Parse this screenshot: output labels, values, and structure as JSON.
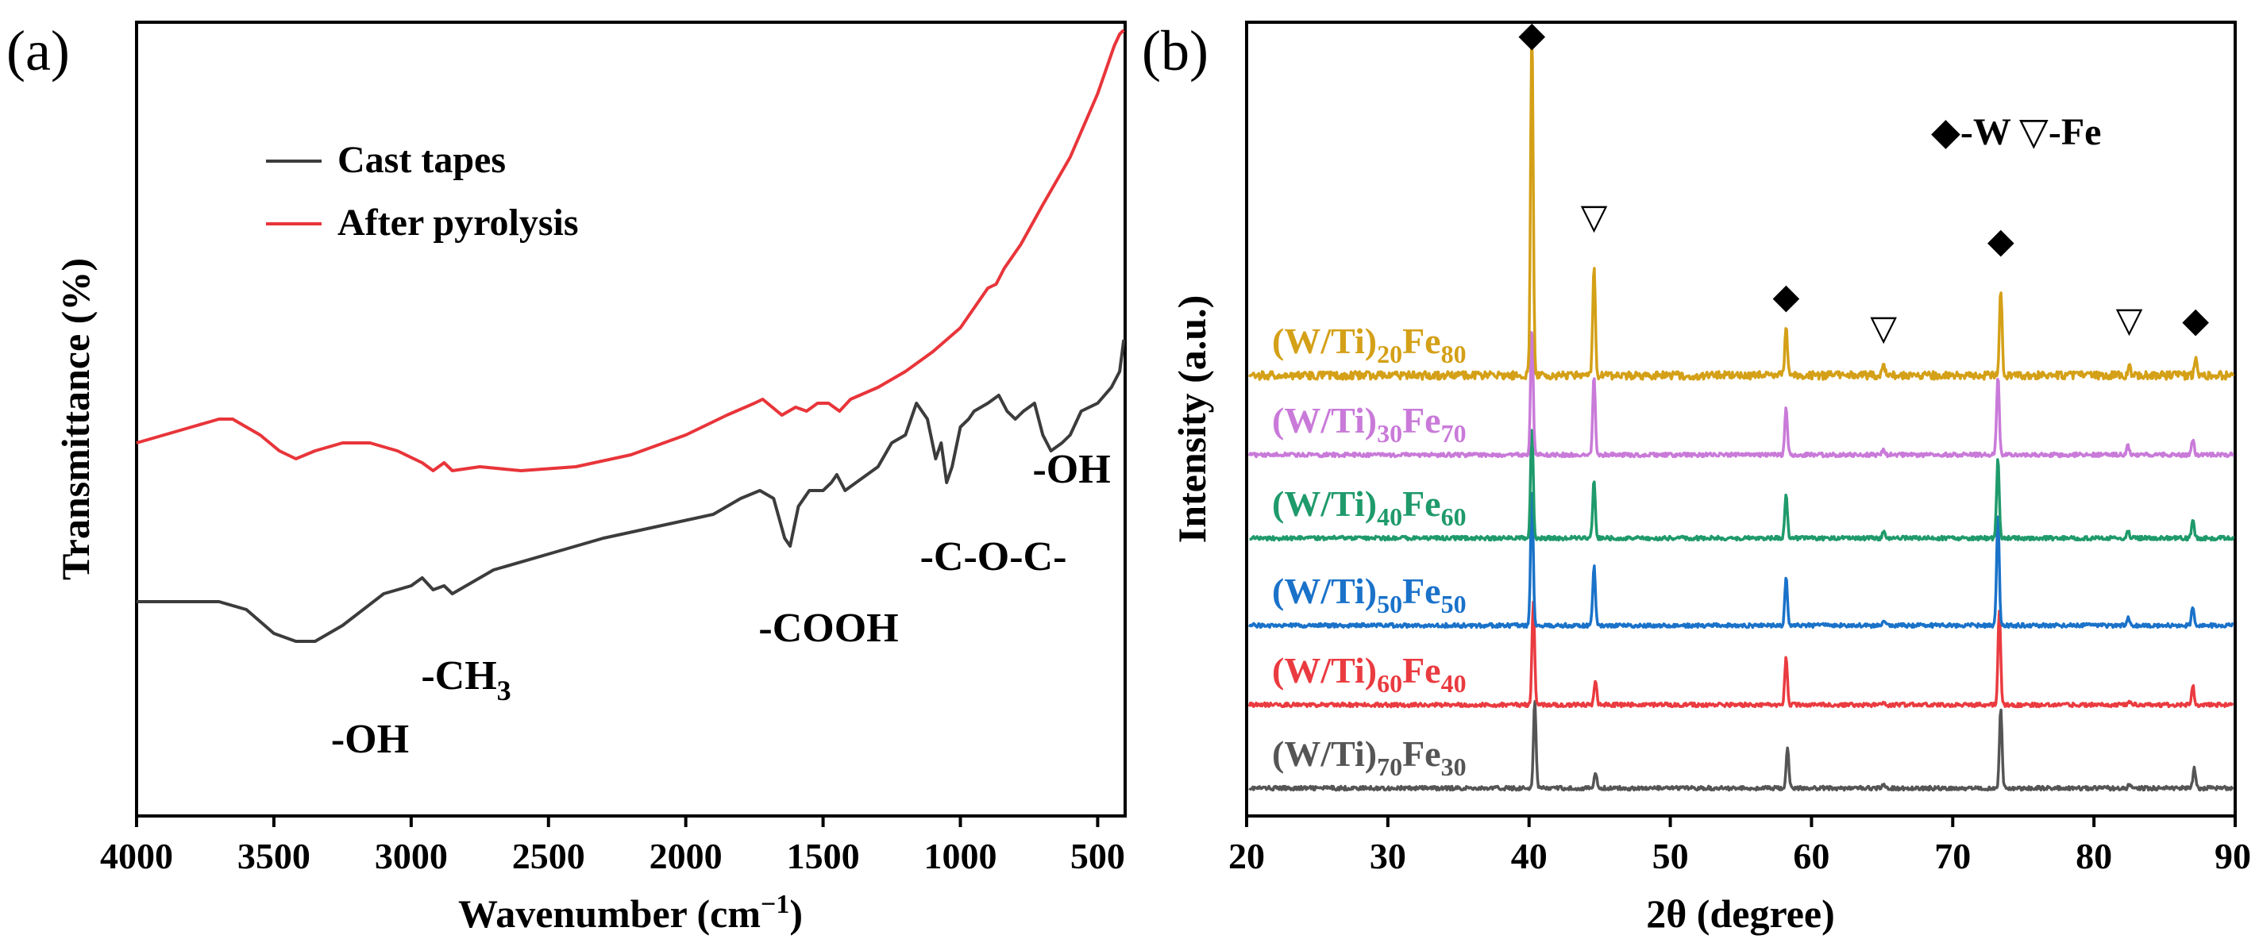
{
  "chart_data": [
    {
      "type": "line",
      "panel_label": "(a)",
      "xlabel": "Wavenumber (cm",
      "xlabel_sup": "−1",
      "xlabel_end": ")",
      "ylabel": "Transmittance (%)",
      "xlim": [
        4000,
        400
      ],
      "x_ticks": [
        "4000",
        "3500",
        "3000",
        "2500",
        "2000",
        "1500",
        "1000",
        "500"
      ],
      "x_tick_values": [
        4000,
        3500,
        3000,
        2500,
        2000,
        1500,
        1000,
        500
      ],
      "y_units": "arbitrary (0 = bottom of plot, 100 = top of plot)",
      "ylim": [
        0,
        100
      ],
      "legend": [
        {
          "label": "Cast tapes",
          "color": "#3c3c3c"
        },
        {
          "label": "After pyrolysis",
          "color": "#e8353a"
        }
      ],
      "series": [
        {
          "name": "Cast tapes",
          "color": "#3c3c3c",
          "points": [
            [
              4000,
              27
            ],
            [
              3800,
              27
            ],
            [
              3700,
              27
            ],
            [
              3600,
              26
            ],
            [
              3500,
              23
            ],
            [
              3420,
              22
            ],
            [
              3350,
              22
            ],
            [
              3250,
              24
            ],
            [
              3100,
              28
            ],
            [
              3000,
              29
            ],
            [
              2960,
              30
            ],
            [
              2920,
              28.5
            ],
            [
              2880,
              29
            ],
            [
              2850,
              28
            ],
            [
              2700,
              31
            ],
            [
              2500,
              33
            ],
            [
              2300,
              35
            ],
            [
              2100,
              36.5
            ],
            [
              1900,
              38
            ],
            [
              1800,
              40
            ],
            [
              1730,
              41
            ],
            [
              1680,
              40
            ],
            [
              1640,
              35
            ],
            [
              1620,
              34
            ],
            [
              1590,
              39
            ],
            [
              1550,
              41
            ],
            [
              1500,
              41
            ],
            [
              1470,
              42
            ],
            [
              1450,
              43
            ],
            [
              1420,
              41
            ],
            [
              1380,
              42
            ],
            [
              1300,
              44
            ],
            [
              1250,
              47
            ],
            [
              1200,
              48
            ],
            [
              1160,
              52
            ],
            [
              1120,
              50
            ],
            [
              1090,
              45
            ],
            [
              1070,
              47
            ],
            [
              1050,
              42
            ],
            [
              1030,
              44
            ],
            [
              1000,
              49
            ],
            [
              970,
              50
            ],
            [
              950,
              51
            ],
            [
              900,
              52
            ],
            [
              860,
              53
            ],
            [
              830,
              51
            ],
            [
              800,
              50
            ],
            [
              770,
              51
            ],
            [
              730,
              52
            ],
            [
              700,
              48
            ],
            [
              670,
              46
            ],
            [
              630,
              47
            ],
            [
              600,
              48
            ],
            [
              560,
              51
            ],
            [
              500,
              52
            ],
            [
              450,
              54
            ],
            [
              420,
              56
            ],
            [
              405,
              60
            ]
          ]
        },
        {
          "name": "After pyrolysis",
          "color": "#e8353a",
          "points": [
            [
              4000,
              47
            ],
            [
              3900,
              48
            ],
            [
              3800,
              49
            ],
            [
              3700,
              50
            ],
            [
              3650,
              50
            ],
            [
              3550,
              48
            ],
            [
              3480,
              46
            ],
            [
              3420,
              45
            ],
            [
              3350,
              46
            ],
            [
              3250,
              47
            ],
            [
              3150,
              47
            ],
            [
              3050,
              46
            ],
            [
              2960,
              44.5
            ],
            [
              2920,
              43.5
            ],
            [
              2880,
              44.5
            ],
            [
              2850,
              43.5
            ],
            [
              2750,
              44
            ],
            [
              2600,
              43.5
            ],
            [
              2400,
              44
            ],
            [
              2200,
              45.5
            ],
            [
              2000,
              48
            ],
            [
              1850,
              50.5
            ],
            [
              1750,
              52
            ],
            [
              1720,
              52.5
            ],
            [
              1650,
              50.5
            ],
            [
              1600,
              51.5
            ],
            [
              1560,
              51
            ],
            [
              1520,
              52
            ],
            [
              1480,
              52
            ],
            [
              1440,
              51
            ],
            [
              1400,
              52.5
            ],
            [
              1300,
              54
            ],
            [
              1200,
              56
            ],
            [
              1100,
              58.5
            ],
            [
              1000,
              61.5
            ],
            [
              950,
              64
            ],
            [
              900,
              66.5
            ],
            [
              870,
              67
            ],
            [
              840,
              69
            ],
            [
              780,
              72
            ],
            [
              700,
              77
            ],
            [
              600,
              83
            ],
            [
              550,
              87
            ],
            [
              500,
              91
            ],
            [
              470,
              94
            ],
            [
              440,
              97
            ],
            [
              420,
              98.5
            ],
            [
              405,
              99
            ]
          ]
        }
      ],
      "annotations": [
        {
          "text": "-OH",
          "x": 3150,
          "y": 8
        },
        {
          "text": "-CH",
          "sub": "3",
          "x": 2800,
          "y": 16
        },
        {
          "text": "-COOH",
          "x": 1480,
          "y": 22
        },
        {
          "text": "-C-O-C-",
          "x": 880,
          "y": 31
        },
        {
          "text": "-OH",
          "x": 595,
          "y": 42
        }
      ]
    },
    {
      "type": "line",
      "panel_label": "(b)",
      "xlabel": "2θ (degree)",
      "ylabel": "Intensity (a.u.)",
      "xlim": [
        20,
        90
      ],
      "x_ticks": [
        "20",
        "30",
        "40",
        "50",
        "60",
        "70",
        "80",
        "90"
      ],
      "x_tick_values": [
        20,
        30,
        40,
        50,
        60,
        70,
        80,
        90
      ],
      "y_units": "arbitrary, offset stacked traces (0 = bottom of plot, 100 = top of plot)",
      "ylim": [
        0,
        100
      ],
      "legend_text": "-W",
      "legend_text_2": "-Fe",
      "legend_markers": [
        {
          "symbol": "◆",
          "phase": "W"
        },
        {
          "symbol": "▽",
          "phase": "Fe"
        }
      ],
      "series": [
        {
          "name": "(W/Ti)70Fe30",
          "label_parts": {
            "a": "(W/Ti)",
            "a_sub": "70",
            "b": "Fe",
            "b_sub": "30"
          },
          "color": "#555555",
          "baseline": 3.5,
          "noise": 0.25,
          "peaks": [
            [
              40.4,
              11
            ],
            [
              44.7,
              2
            ],
            [
              58.3,
              5
            ],
            [
              65.1,
              0.4
            ],
            [
              73.4,
              10
            ],
            [
              82.5,
              0.5
            ],
            [
              87.1,
              2.5
            ]
          ]
        },
        {
          "name": "(W/Ti)60Fe40",
          "label_parts": {
            "a": "(W/Ti)",
            "a_sub": "60",
            "b": "Fe",
            "b_sub": "40"
          },
          "color": "#ea3b40",
          "baseline": 14,
          "noise": 0.25,
          "peaks": [
            [
              40.3,
              13
            ],
            [
              44.7,
              3
            ],
            [
              58.2,
              6
            ],
            [
              65.1,
              0.4
            ],
            [
              73.3,
              12
            ],
            [
              82.5,
              0.5
            ],
            [
              87,
              2.5
            ]
          ]
        },
        {
          "name": "(W/Ti)50Fe50",
          "label_parts": {
            "a": "(W/Ti)",
            "a_sub": "50",
            "b": "Fe",
            "b_sub": "50"
          },
          "color": "#1a72c9",
          "baseline": 24,
          "noise": 0.25,
          "peaks": [
            [
              40.2,
              17
            ],
            [
              44.6,
              7.5
            ],
            [
              58.2,
              6
            ],
            [
              65.1,
              0.6
            ],
            [
              73.2,
              14
            ],
            [
              82.4,
              1
            ],
            [
              87,
              2.5
            ]
          ]
        },
        {
          "name": "(W/Ti)40Fe60",
          "label_parts": {
            "a": "(W/Ti)",
            "a_sub": "40",
            "b": "Fe",
            "b_sub": "60"
          },
          "color": "#1f9a6b",
          "baseline": 35,
          "noise": 0.25,
          "peaks": [
            [
              40.2,
              14
            ],
            [
              44.6,
              7.5
            ],
            [
              58.2,
              5.5
            ],
            [
              65.1,
              0.8
            ],
            [
              73.2,
              10
            ],
            [
              82.4,
              1
            ],
            [
              87,
              2.5
            ]
          ]
        },
        {
          "name": "(W/Ti)30Fe70",
          "label_parts": {
            "a": "(W/Ti)",
            "a_sub": "30",
            "b": "Fe",
            "b_sub": "70"
          },
          "color": "#c97ad9",
          "baseline": 45.5,
          "noise": 0.25,
          "peaks": [
            [
              40.2,
              16
            ],
            [
              44.6,
              10
            ],
            [
              58.2,
              6
            ],
            [
              65.1,
              0.8
            ],
            [
              73.2,
              10
            ],
            [
              82.4,
              1.2
            ],
            [
              87,
              2
            ]
          ]
        },
        {
          "name": "(W/Ti)20Fe80",
          "label_parts": {
            "a": "(W/Ti)",
            "a_sub": "20",
            "b": "Fe",
            "b_sub": "80"
          },
          "color": "#d4a017",
          "baseline": 55.5,
          "noise": 0.5,
          "peaks": [
            [
              40.2,
              44
            ],
            [
              44.6,
              14
            ],
            [
              58.2,
              6
            ],
            [
              65.1,
              1.5
            ],
            [
              73.4,
              11
            ],
            [
              82.5,
              1.5
            ],
            [
              87.2,
              2.5
            ]
          ]
        }
      ],
      "peak_markers": [
        {
          "symbol": "◆",
          "x": 40.2,
          "y": 97
        },
        {
          "symbol": "▽",
          "x": 44.6,
          "y": 74
        },
        {
          "symbol": "◆",
          "x": 58.2,
          "y": 64
        },
        {
          "symbol": "▽",
          "x": 65.1,
          "y": 60
        },
        {
          "symbol": "◆",
          "x": 73.4,
          "y": 71
        },
        {
          "symbol": "▽",
          "x": 82.5,
          "y": 61
        },
        {
          "symbol": "◆",
          "x": 87.2,
          "y": 61
        }
      ]
    }
  ]
}
